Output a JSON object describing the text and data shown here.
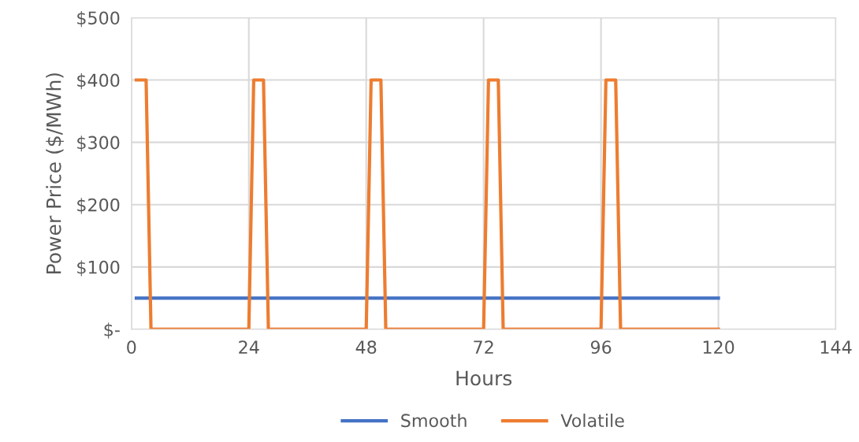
{
  "chart_data": {
    "type": "line",
    "xlabel": "Hours",
    "ylabel": "Power Price ($/MWh)",
    "xlim": [
      0,
      144
    ],
    "xticks": [
      0,
      24,
      48,
      72,
      96,
      120,
      144
    ],
    "ylim": [
      0,
      500
    ],
    "yticks": [
      {
        "value": 0,
        "label": "$-"
      },
      {
        "value": 100,
        "label": "$100"
      },
      {
        "value": 200,
        "label": "$200"
      },
      {
        "value": 300,
        "label": "$300"
      },
      {
        "value": 400,
        "label": "$400"
      },
      {
        "value": 500,
        "label": "$500"
      }
    ],
    "grid": true,
    "legend": "bottom",
    "marker": "none",
    "line_style": "solid",
    "series": [
      {
        "name": "Smooth",
        "color": "#4472c4",
        "x": [
          1,
          120
        ],
        "values": [
          50,
          50
        ]
      },
      {
        "name": "Volatile",
        "color": "#ed7d31",
        "x": [
          1,
          3,
          4,
          24,
          25,
          27,
          28,
          48,
          49,
          51,
          52,
          72,
          73,
          75,
          76,
          96,
          97,
          99,
          100,
          120
        ],
        "values": [
          400,
          400,
          0,
          0,
          400,
          400,
          0,
          0,
          400,
          400,
          0,
          0,
          400,
          400,
          0,
          0,
          400,
          400,
          0,
          0
        ]
      }
    ]
  }
}
